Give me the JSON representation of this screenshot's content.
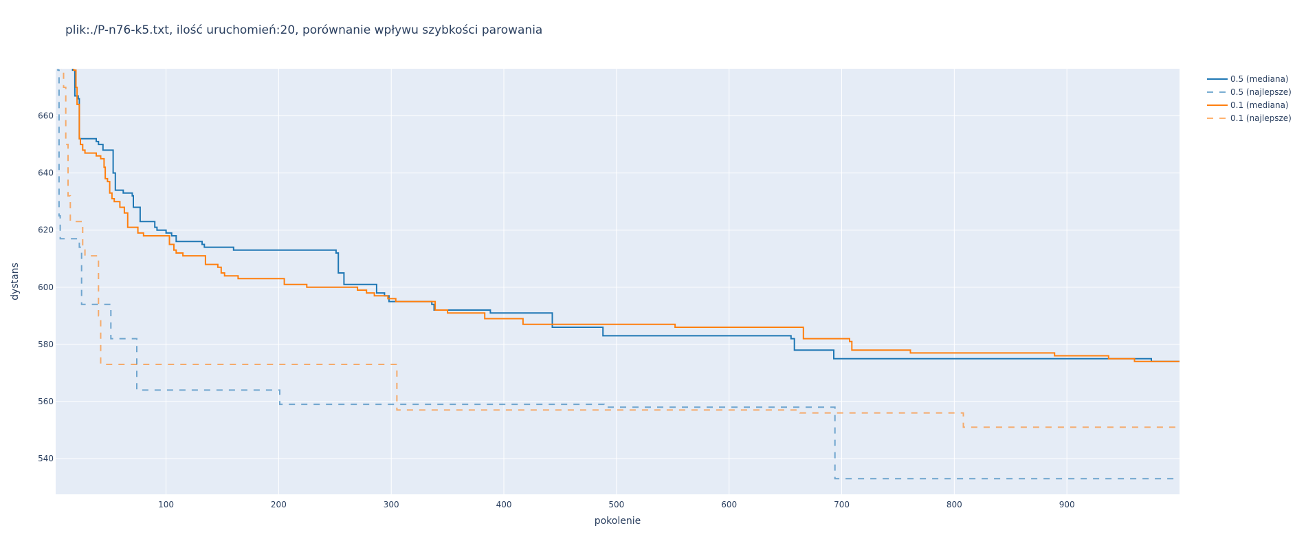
{
  "chart_data": {
    "type": "line",
    "title": "plik:./P-n76-k5.txt, ilość uruchomień:20, porównanie wpływu szybkości parowania",
    "xlabel": "pokolenie",
    "ylabel": "dystans",
    "xlim": [
      2,
      1000
    ],
    "ylim": [
      527.5,
      676.5
    ],
    "xticks": [
      100,
      200,
      300,
      400,
      500,
      600,
      700,
      800,
      900
    ],
    "yticks": [
      540,
      560,
      580,
      600,
      620,
      640,
      660
    ],
    "grid": true,
    "legend_position": "top-right",
    "series": [
      {
        "name": "0.5 (mediana)",
        "color": "#1f77b4",
        "dash": "solid",
        "x": [
          2,
          17,
          19,
          20,
          22,
          23,
          38,
          40,
          44,
          47,
          53,
          55,
          58,
          62,
          68,
          70,
          71,
          73,
          77,
          88,
          90,
          92,
          100,
          105,
          109,
          132,
          134,
          160,
          162,
          251,
          253,
          258,
          285,
          287,
          294,
          298,
          336,
          338,
          388,
          441,
          443,
          486,
          488,
          653,
          655,
          658,
          691,
          693,
          972,
          975,
          1000
        ],
        "y": [
          720,
          676,
          667,
          667,
          666,
          652,
          651,
          650,
          648,
          648,
          640,
          634,
          634,
          633,
          633,
          632,
          628,
          628,
          623,
          623,
          621,
          620,
          619,
          618,
          616,
          615,
          614,
          613,
          613,
          612,
          605,
          601,
          601,
          598,
          597,
          595,
          594,
          592,
          591,
          591,
          586,
          586,
          583,
          583,
          582,
          578,
          578,
          575,
          575,
          574,
          574
        ]
      },
      {
        "name": "0.5 (najlepsze)",
        "color": "#1f77b4",
        "dash": "dash",
        "x": [
          2,
          4,
          5,
          6,
          22,
          23,
          25,
          49,
          51,
          72,
          74,
          199,
          201,
          487,
          489,
          692,
          694,
          1000
        ],
        "y": [
          720,
          676,
          625,
          617,
          617,
          614,
          594,
          594,
          582,
          582,
          564,
          564,
          559,
          559,
          558,
          558,
          533,
          533
        ],
        "opacity": 0.6
      },
      {
        "name": "0.1 (mediana)",
        "color": "#ff7f0e",
        "dash": "solid",
        "x": [
          2,
          18,
          20,
          21,
          23,
          24,
          26,
          28,
          38,
          42,
          45,
          46,
          48,
          50,
          52,
          54,
          59,
          61,
          63,
          66,
          75,
          80,
          100,
          103,
          107,
          109,
          115,
          133,
          135,
          146,
          149,
          152,
          162,
          164,
          203,
          205,
          220,
          225,
          270,
          278,
          285,
          295,
          297,
          302,
          304,
          337,
          339,
          348,
          350,
          381,
          383,
          415,
          417,
          550,
          552,
          664,
          666,
          695,
          707,
          709,
          759,
          761,
          887,
          889,
          935,
          937,
          958,
          960,
          1000
        ],
        "y": [
          720,
          676,
          670,
          664,
          652,
          650,
          648,
          647,
          646,
          645,
          642,
          638,
          637,
          633,
          631,
          630,
          628,
          628,
          626,
          621,
          619,
          618,
          618,
          615,
          613,
          612,
          611,
          611,
          608,
          607,
          605,
          604,
          604,
          603,
          603,
          601,
          601,
          600,
          599,
          598,
          597,
          597,
          596,
          596,
          595,
          595,
          592,
          592,
          591,
          591,
          589,
          589,
          587,
          587,
          586,
          586,
          582,
          582,
          581,
          578,
          578,
          577,
          577,
          576,
          576,
          575,
          575,
          574,
          574
        ]
      },
      {
        "name": "0.1 (najlepsze)",
        "color": "#ff7f0e",
        "dash": "dash",
        "x": [
          2,
          7,
          9,
          11,
          13,
          15,
          24,
          26,
          28,
          38,
          40,
          42,
          303,
          305,
          661,
          663,
          806,
          808,
          1000
        ],
        "y": [
          720,
          676,
          670,
          650,
          632,
          623,
          623,
          614,
          611,
          611,
          590,
          573,
          573,
          557,
          557,
          556,
          556,
          551,
          551
        ],
        "opacity": 0.6
      }
    ]
  }
}
